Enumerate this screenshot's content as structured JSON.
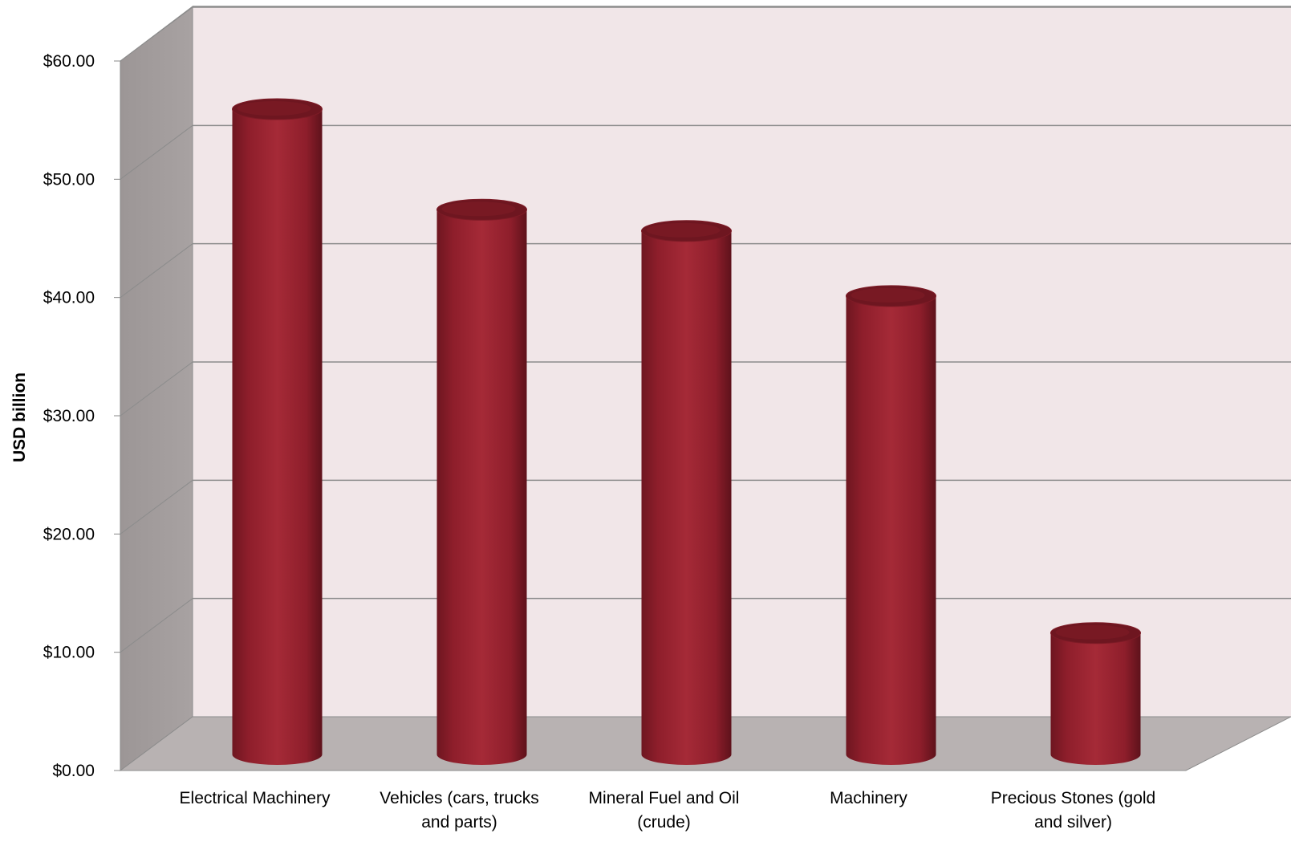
{
  "chart_data": {
    "type": "bar",
    "style": "3d-cylinder",
    "categories": [
      [
        "Electrical Machinery"
      ],
      [
        "Vehicles (cars, trucks",
        "and parts)"
      ],
      [
        "Mineral Fuel and Oil",
        "(crude)"
      ],
      [
        "Machinery"
      ],
      [
        "Precious Stones (gold",
        "and silver)"
      ]
    ],
    "values": [
      54.5,
      46.0,
      44.2,
      38.7,
      10.2
    ],
    "ylabel": "USD billion",
    "ylim": [
      0,
      60
    ],
    "yticks": [
      "$0.00",
      "$10.00",
      "$20.00",
      "$30.00",
      "$40.00",
      "$50.00",
      "$60.00"
    ],
    "grid": true,
    "legend": "none",
    "colors": {
      "bar": "#A52A37",
      "bar_dark": "#6E1620",
      "back_wall": "#F1E6E8",
      "side_wall": "#A29C9C",
      "floor": "#B8B2B2",
      "grid": "#8C8C8C"
    }
  }
}
